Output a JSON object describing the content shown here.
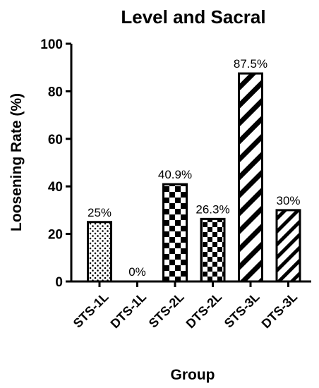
{
  "chart_data": {
    "type": "bar",
    "title": "Level and Sacral",
    "xlabel": "Group",
    "ylabel": "Loosening Rate (%)",
    "ylim": [
      0,
      100
    ],
    "yticks": [
      0,
      20,
      40,
      60,
      80,
      100
    ],
    "grid": false,
    "categories": [
      "STS-1L",
      "DTS-1L",
      "STS-2L",
      "DTS-2L",
      "STS-3L",
      "DTS-3L"
    ],
    "values": [
      25,
      0,
      40.9,
      26.3,
      87.5,
      30
    ],
    "data_labels": [
      "25%",
      "0%",
      "40.9%",
      "26.3%",
      "87.5%",
      "30%"
    ],
    "fill_patterns": [
      "dots",
      "none",
      "checker-large",
      "checker-small",
      "diagonal-wide",
      "diagonal-narrow"
    ]
  }
}
